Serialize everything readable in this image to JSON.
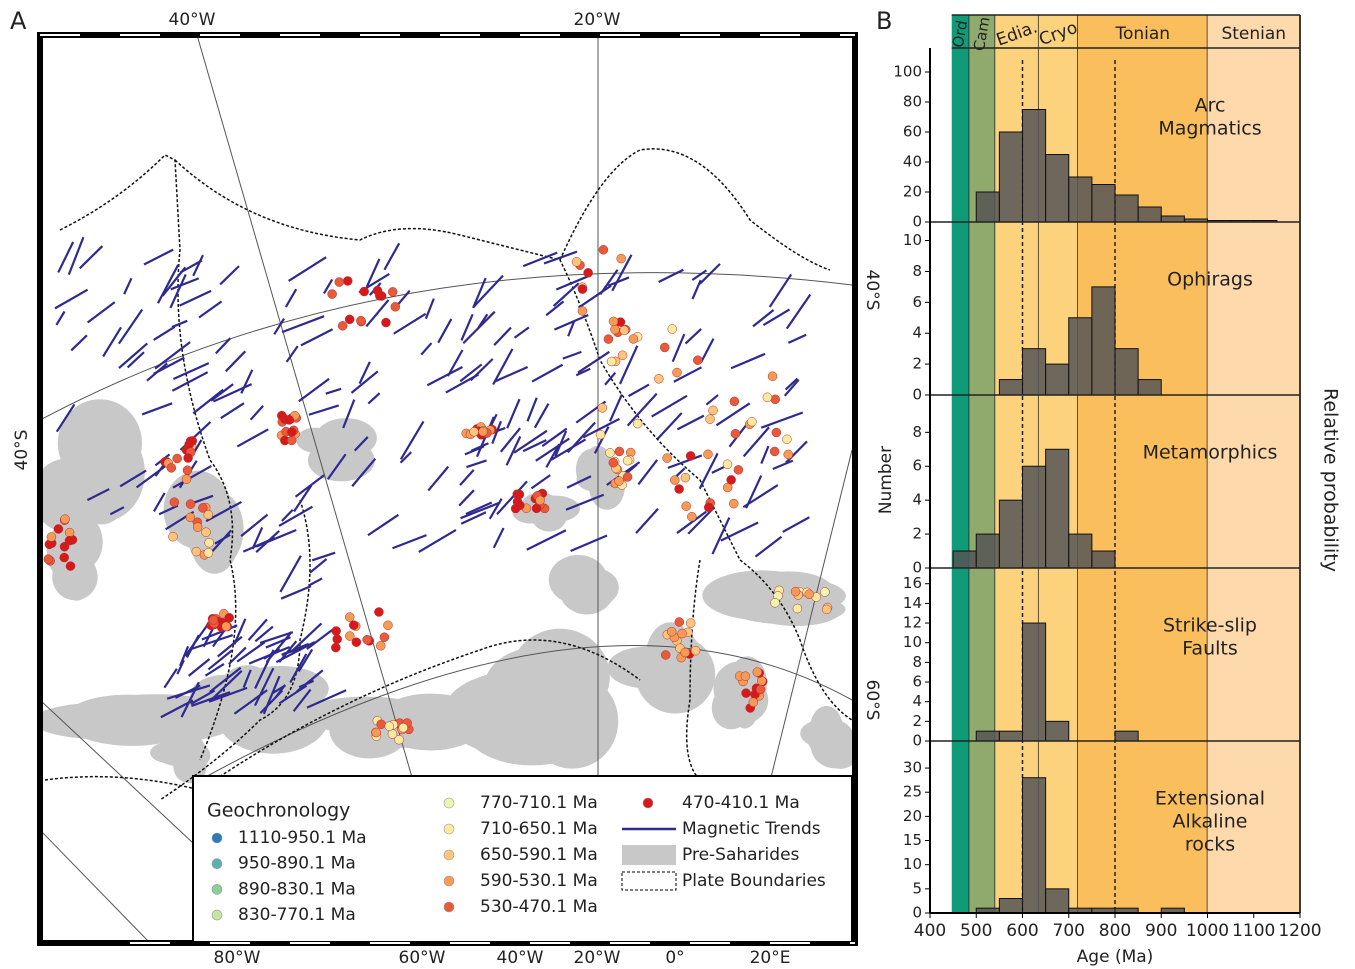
{
  "panel_a": {
    "label": "A",
    "top_labels": [
      "40°W",
      "20°W"
    ],
    "bottom_labels": [
      "80°W",
      "60°W",
      "40°W",
      "20°W",
      "0°",
      "20°E"
    ],
    "left_labels": [
      "40°S"
    ],
    "right_labels": [
      "40°S",
      "60°S"
    ],
    "legend": {
      "title": "Geochronology",
      "items": [
        {
          "label": "1110-950.1 Ma",
          "color": "#2b7bb9"
        },
        {
          "label": "950-890.1 Ma",
          "color": "#5aafb0"
        },
        {
          "label": "890-830.1 Ma",
          "color": "#8ccf9a"
        },
        {
          "label": "830-770.1 Ma",
          "color": "#c4e6a0"
        },
        {
          "label": "770-710.1 Ma",
          "color": "#eef5b0"
        },
        {
          "label": "710-650.1 Ma",
          "color": "#fde9a0"
        },
        {
          "label": "650-590.1 Ma",
          "color": "#fdc57a"
        },
        {
          "label": "590-530.1 Ma",
          "color": "#f69a55"
        },
        {
          "label": "530-470.1 Ma",
          "color": "#e85a3a"
        },
        {
          "label": "470-410.1 Ma",
          "color": "#d7191c"
        },
        {
          "label": "Magnetic Trends",
          "color": "#2e2a8f"
        },
        {
          "label": "Pre-Saharides",
          "color": "#c8c8c8"
        },
        {
          "label": "Plate Boundaries"
        }
      ]
    }
  },
  "panel_b": {
    "label": "B",
    "x_label": "Age (Ma)",
    "y_label": "Number",
    "y2_label": "Relative probability",
    "xlim": [
      400,
      1200
    ],
    "xticks": [
      400,
      500,
      600,
      700,
      800,
      900,
      1000,
      1100,
      1200
    ],
    "periods": [
      {
        "name": "Ord",
        "from": 447,
        "to": 485,
        "color": "#0f9a78"
      },
      {
        "name": "Cam",
        "from": 485,
        "to": 541,
        "color": "#8faa6c"
      },
      {
        "name": "Edia.",
        "from": 541,
        "to": 635,
        "color": "#fdd27d"
      },
      {
        "name": "Cryo",
        "from": 635,
        "to": 720,
        "color": "#fdd27d"
      },
      {
        "name": "Tonian",
        "from": 720,
        "to": 1000,
        "color": "#fabf5c"
      },
      {
        "name": "Stenian",
        "from": 1000,
        "to": 1200,
        "color": "#fdd9ab"
      }
    ],
    "dashed_lines": [
      600,
      800
    ],
    "bins": [
      450,
      500,
      550,
      600,
      650,
      700,
      750,
      800,
      850,
      900,
      950,
      1000,
      1050,
      1100,
      1150,
      1200
    ],
    "panels": [
      {
        "title": [
          "Arc",
          "Magmatics"
        ],
        "ylim": [
          0,
          116
        ],
        "yticks": [
          0,
          20,
          40,
          60,
          80,
          100
        ],
        "counts": [
          0,
          20,
          60,
          75,
          45,
          30,
          25,
          18,
          10,
          4,
          2,
          1,
          1,
          1,
          0
        ]
      },
      {
        "title": [
          "Ophirags"
        ],
        "ylim": [
          0,
          11.2
        ],
        "yticks": [
          0,
          2,
          4,
          6,
          8,
          10
        ],
        "counts": [
          0,
          0,
          1,
          3,
          2,
          5,
          7,
          3,
          1,
          0,
          0,
          0,
          0,
          0,
          0
        ]
      },
      {
        "title": [
          "Metamorphics"
        ],
        "ylim": [
          0,
          10.2
        ],
        "yticks": [
          0,
          2,
          4,
          6,
          8
        ],
        "counts": [
          1,
          2,
          4,
          6,
          7,
          2,
          1,
          0,
          0,
          0,
          0,
          0,
          0,
          0,
          0
        ]
      },
      {
        "title": [
          "Strike-slip",
          "Faults"
        ],
        "ylim": [
          0,
          17.6
        ],
        "yticks": [
          0,
          2,
          4,
          6,
          8,
          10,
          12,
          14,
          16
        ],
        "counts": [
          0,
          1,
          1,
          12,
          2,
          0,
          0,
          1,
          0,
          0,
          0,
          0,
          0,
          0,
          0
        ]
      },
      {
        "title": [
          "Extensional",
          "Alkaline",
          "rocks"
        ],
        "ylim": [
          0,
          35.6
        ],
        "yticks": [
          0,
          5,
          10,
          15,
          20,
          25,
          30
        ],
        "counts": [
          0,
          1,
          3,
          28,
          5,
          1,
          1,
          1,
          0,
          1,
          0,
          0,
          0,
          0,
          0
        ]
      }
    ]
  }
}
